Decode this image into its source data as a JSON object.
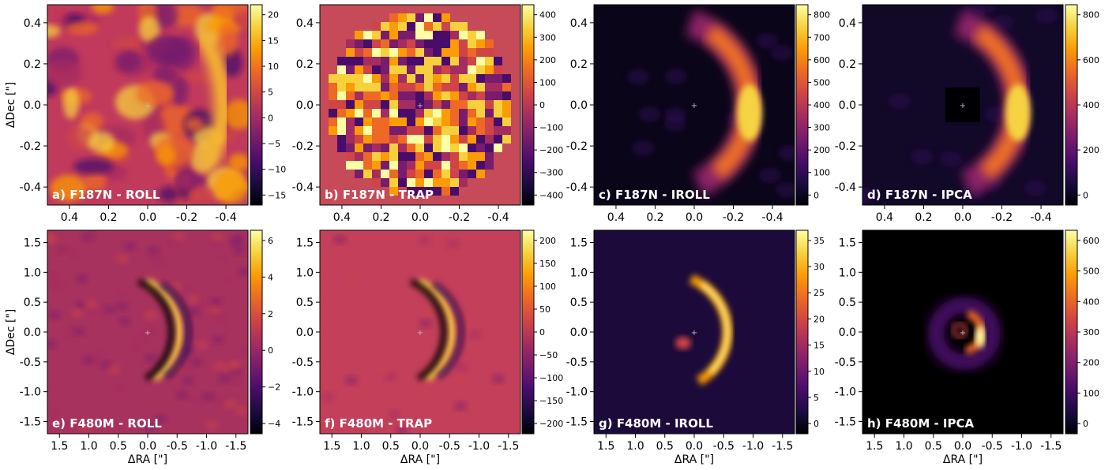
{
  "figure": {
    "panels": [
      {
        "label": "a) F187N - ROLL",
        "xticks": [
          "0.4",
          "0.2",
          "0.0",
          "-0.2",
          "-0.4"
        ],
        "yticks": [
          "0.4",
          "0.2",
          "0.0",
          "-0.2",
          "-0.4"
        ],
        "ylabel": "ΔDec [\"]",
        "xlabel": "",
        "colorbar_ticks": [
          "20",
          "15",
          "10",
          "5",
          "0",
          "−5",
          "−10",
          "−15"
        ],
        "background": "#c13a5c"
      },
      {
        "label": "b) F187N - TRAP",
        "xticks": [
          "0.4",
          "0.2",
          "0.0",
          "-0.2",
          "-0.4"
        ],
        "yticks": [
          "0.4",
          "0.2",
          "0.0",
          "-0.2",
          "-0.4"
        ],
        "ylabel": "",
        "xlabel": "",
        "colorbar_ticks": [
          "400",
          "300",
          "200",
          "100",
          "0",
          "−100",
          "−200",
          "−300",
          "−400"
        ],
        "background": "#c64a58"
      },
      {
        "label": "c) F187N - IROLL",
        "xticks": [
          "0.4",
          "0.2",
          "0.0",
          "-0.2",
          "-0.4"
        ],
        "yticks": [
          "0.4",
          "0.2",
          "0.0",
          "-0.2",
          "-0.4"
        ],
        "ylabel": "",
        "xlabel": "",
        "colorbar_ticks": [
          "800",
          "700",
          "600",
          "500",
          "400",
          "300",
          "200",
          "100",
          "0"
        ],
        "background": "#0a0518"
      },
      {
        "label": "d) F187N - IPCA",
        "xticks": [
          "0.4",
          "0.2",
          "0.0",
          "-0.2",
          "-0.4"
        ],
        "yticks": [
          "0.4",
          "0.2",
          "0.0",
          "-0.2",
          "-0.4"
        ],
        "ylabel": "",
        "xlabel": "",
        "colorbar_ticks": [
          "800",
          "600",
          "400",
          "200",
          "0"
        ],
        "background": "#120828"
      },
      {
        "label": "e) F480M - ROLL",
        "xticks": [
          "1.5",
          "1.0",
          "0.5",
          "0.0",
          "-0.5",
          "-1.0",
          "-1.5"
        ],
        "yticks": [
          "1.5",
          "1.0",
          "0.5",
          "0.0",
          "-0.5",
          "-1.0",
          "-1.5"
        ],
        "ylabel": "ΔDec [\"]",
        "xlabel": "ΔRA [\"]",
        "colorbar_ticks": [
          "6",
          "4",
          "2",
          "0",
          "−2",
          "−4"
        ],
        "background": "#a8325e"
      },
      {
        "label": "f) F480M - TRAP",
        "xticks": [
          "1.5",
          "1.0",
          "0.5",
          "0.0",
          "-0.5",
          "-1.0",
          "-1.5"
        ],
        "yticks": [
          "1.5",
          "1.0",
          "0.5",
          "0.0",
          "-0.5",
          "-1.0",
          "-1.5"
        ],
        "ylabel": "",
        "xlabel": "ΔRA [\"]",
        "colorbar_ticks": [
          "200",
          "150",
          "100",
          "50",
          "0",
          "−50",
          "−100",
          "−150",
          "−200"
        ],
        "background": "#c33f5a"
      },
      {
        "label": "g) F480M - IROLL",
        "xticks": [
          "1.5",
          "1.0",
          "0.5",
          "0.0",
          "-0.5",
          "-1.0",
          "-1.5"
        ],
        "yticks": [
          "1.5",
          "1.0",
          "0.5",
          "0.0",
          "-0.5",
          "-1.0",
          "-1.5"
        ],
        "ylabel": "",
        "xlabel": "ΔRA [\"]",
        "colorbar_ticks": [
          "35",
          "30",
          "25",
          "20",
          "15",
          "10",
          "5",
          "0"
        ],
        "background": "#1c0a3a"
      },
      {
        "label": "h) F480M - IPCA",
        "xticks": [
          "1.5",
          "1.0",
          "0.5",
          "0.0",
          "-0.5",
          "-1.0",
          "-1.5"
        ],
        "yticks": [
          "1.5",
          "1.0",
          "0.5",
          "0.0",
          "-0.5",
          "-1.0",
          "-1.5"
        ],
        "ylabel": "",
        "xlabel": "ΔRA [\"]",
        "colorbar_ticks": [
          "600",
          "500",
          "400",
          "300",
          "200",
          "100",
          "0"
        ],
        "background": "#000000"
      }
    ],
    "colormap": [
      "#000004",
      "#1b0c41",
      "#4a0c6b",
      "#781c6d",
      "#a52c60",
      "#cf4446",
      "#ed6925",
      "#fb9b06",
      "#f7d13d",
      "#fcffa4"
    ]
  }
}
